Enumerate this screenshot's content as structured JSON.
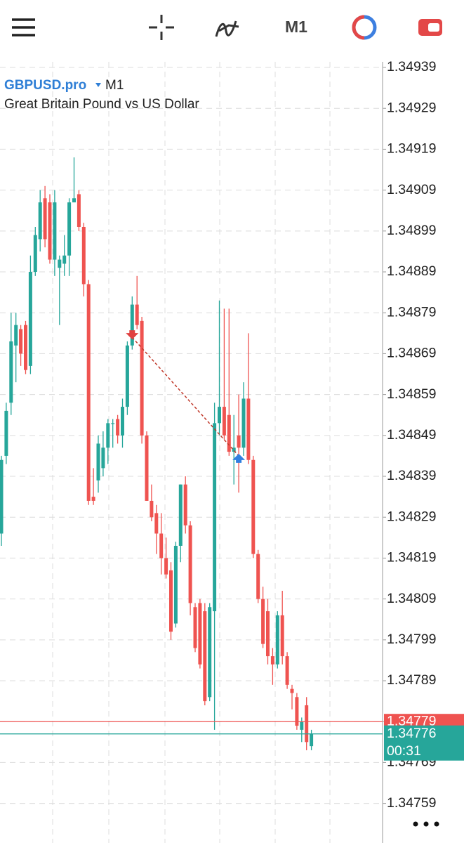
{
  "toolbar": {
    "timeframe": "M1"
  },
  "chart_data": {
    "type": "candlestick",
    "title": "GBPUSD.pro",
    "timeframe": "M1",
    "subtitle": "Great Britain Pound vs US Dollar",
    "up_color": "#26a69a",
    "down_color": "#ef5350",
    "open": [
      1.34825,
      1.34844,
      1.34857,
      1.34871,
      1.34875,
      1.34876,
      1.34866,
      1.34889,
      1.34897,
      1.34907,
      1.34906,
      1.34892,
      1.3489,
      1.34891,
      1.34893,
      1.34906,
      1.34908,
      1.349,
      1.34886,
      1.34834,
      1.34838,
      1.34841,
      1.34846,
      1.34852,
      1.34853,
      1.34849,
      1.34856,
      1.34871,
      1.34881,
      1.34877,
      1.34849,
      1.34833,
      1.3483,
      1.34825,
      1.34819,
      1.34816,
      1.34803,
      1.34822,
      1.34837,
      1.34827,
      1.34807,
      1.34808,
      1.34806,
      1.34785,
      1.34806,
      1.34852,
      1.34856,
      1.34854,
      1.34845,
      1.34849,
      1.34846,
      1.34858,
      1.34843,
      1.3482,
      1.34809,
      1.34806,
      1.34795,
      1.34793,
      1.34805,
      1.34795,
      1.34787,
      1.34785,
      1.34777,
      1.34783,
      1.34773
    ],
    "high": [
      1.34844,
      1.34857,
      1.34879,
      1.34879,
      1.34876,
      1.34877,
      1.34893,
      1.349,
      1.34909,
      1.3491,
      1.34908,
      1.34909,
      1.34893,
      1.34898,
      1.34907,
      1.34917,
      1.34909,
      1.34901,
      1.34887,
      1.34841,
      1.34849,
      1.3485,
      1.34853,
      1.34853,
      1.34854,
      1.34858,
      1.34872,
      1.34883,
      1.34888,
      1.34878,
      1.3485,
      1.34837,
      1.34832,
      1.3483,
      1.34824,
      1.34818,
      1.34823,
      1.34837,
      1.34839,
      1.34828,
      1.34808,
      1.34809,
      1.34808,
      1.34808,
      1.34857,
      1.34882,
      1.3488,
      1.3488,
      1.34854,
      1.34859,
      1.34862,
      1.34874,
      1.34844,
      1.34821,
      1.34812,
      1.34809,
      1.34797,
      1.34806,
      1.34811,
      1.34796,
      1.34788,
      1.34786,
      1.3478,
      1.34785,
      1.34777
    ],
    "low": [
      1.34822,
      1.34842,
      1.34854,
      1.34862,
      1.34866,
      1.34864,
      1.34864,
      1.34888,
      1.34894,
      1.34895,
      1.34891,
      1.34888,
      1.34876,
      1.34888,
      1.34888,
      1.34906,
      1.34899,
      1.34883,
      1.34832,
      1.34832,
      1.34835,
      1.34839,
      1.34842,
      1.34846,
      1.34847,
      1.34846,
      1.34854,
      1.3487,
      1.34875,
      1.34847,
      1.34833,
      1.34828,
      1.3482,
      1.34815,
      1.34814,
      1.34799,
      1.34802,
      1.34818,
      1.34825,
      1.34805,
      1.34796,
      1.34792,
      1.34783,
      1.34784,
      1.34777,
      1.34849,
      1.34848,
      1.34844,
      1.34837,
      1.34835,
      1.34844,
      1.34842,
      1.34819,
      1.34808,
      1.34797,
      1.34793,
      1.34788,
      1.34792,
      1.34793,
      1.34787,
      1.34782,
      1.34777,
      1.34774,
      1.34772,
      1.34772
    ],
    "close": [
      1.34843,
      1.34855,
      1.34872,
      1.34876,
      1.34869,
      1.34865,
      1.34889,
      1.34898,
      1.34906,
      1.34897,
      1.34892,
      1.34906,
      1.34892,
      1.34893,
      1.34906,
      1.34907,
      1.349,
      1.34886,
      1.34833,
      1.34833,
      1.34847,
      1.34846,
      1.34852,
      1.34852,
      1.34849,
      1.34856,
      1.34871,
      1.34881,
      1.34876,
      1.34849,
      1.34833,
      1.34829,
      1.34825,
      1.34819,
      1.34815,
      1.34801,
      1.34822,
      1.34837,
      1.34827,
      1.34808,
      1.34797,
      1.34793,
      1.34784,
      1.34807,
      1.34852,
      1.34856,
      1.34849,
      1.34845,
      1.34846,
      1.34846,
      1.34858,
      1.34843,
      1.3482,
      1.34809,
      1.34798,
      1.34795,
      1.34793,
      1.34805,
      1.34795,
      1.34788,
      1.34786,
      1.34778,
      1.34779,
      1.34774,
      1.34776
    ],
    "ylim": [
      1.3475,
      1.3494
    ],
    "yticks": [
      1.34939,
      1.34929,
      1.34919,
      1.34909,
      1.34899,
      1.34889,
      1.34879,
      1.34869,
      1.34859,
      1.34849,
      1.34839,
      1.34829,
      1.34819,
      1.34809,
      1.34799,
      1.34789,
      1.34779,
      1.34769,
      1.34759
    ],
    "grid": true,
    "ask": 1.34779,
    "ask_color": "#ef5350",
    "bid": 1.34776,
    "bid_color": "#26a69a",
    "timer": "00:31",
    "trade": {
      "entry": 1.34873,
      "entry_candle": 27,
      "exit": 1.34844,
      "exit_candle": 49
    }
  }
}
